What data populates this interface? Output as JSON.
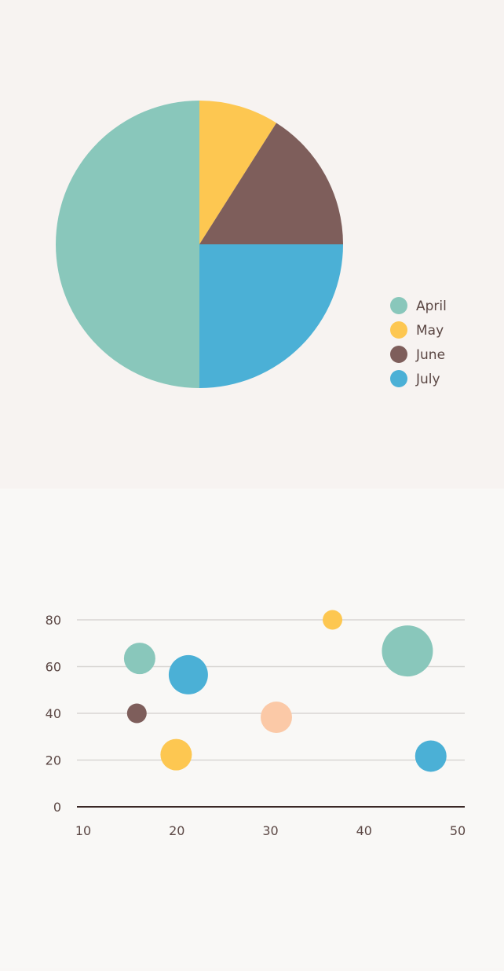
{
  "colors": {
    "teal": "#89c7bb",
    "yellow": "#fdc751",
    "brown": "#7e5e5b",
    "blue": "#4bb0d6",
    "peach": "#fbc9a7",
    "text": "#5b4744",
    "grid": "#d9d6d3",
    "axis": "#3a2826"
  },
  "chart_data": [
    {
      "type": "pie",
      "slices": [
        {
          "label": "April",
          "value": 50,
          "color": "#89c7bb"
        },
        {
          "label": "May",
          "value": 9,
          "color": "#fdc751"
        },
        {
          "label": "June",
          "value": 16,
          "color": "#7e5e5b"
        },
        {
          "label": "July",
          "value": 25,
          "color": "#4bb0d6"
        }
      ],
      "legend": [
        "April",
        "May",
        "June",
        "July"
      ],
      "legend_position": "right"
    },
    {
      "type": "scatter",
      "bubble": true,
      "xlim": [
        10,
        50
      ],
      "ylim": [
        0,
        80
      ],
      "x_ticks": [
        10,
        20,
        30,
        40,
        50
      ],
      "y_ticks": [
        0,
        20,
        40,
        60,
        80
      ],
      "x_tick_labels": [
        "10",
        "20",
        "30",
        "40",
        "50"
      ],
      "y_tick_labels": [
        "0",
        "20",
        "40",
        "60",
        "80"
      ],
      "grid": true,
      "points": [
        {
          "x": 16.7,
          "y": 63.5,
          "size": 4,
          "color": "#89c7bb"
        },
        {
          "x": 21.9,
          "y": 56.5,
          "size": 5,
          "color": "#4bb0d6"
        },
        {
          "x": 16.4,
          "y": 40.0,
          "size": 2.5,
          "color": "#7e5e5b"
        },
        {
          "x": 20.6,
          "y": 22.3,
          "size": 4,
          "color": "#fdc751"
        },
        {
          "x": 31.3,
          "y": 38.3,
          "size": 4,
          "color": "#fbc9a7"
        },
        {
          "x": 37.3,
          "y": 80.0,
          "size": 2.5,
          "color": "#fdc751"
        },
        {
          "x": 45.3,
          "y": 66.7,
          "size": 6.5,
          "color": "#89c7bb"
        },
        {
          "x": 47.8,
          "y": 21.7,
          "size": 4,
          "color": "#4bb0d6"
        }
      ]
    }
  ]
}
